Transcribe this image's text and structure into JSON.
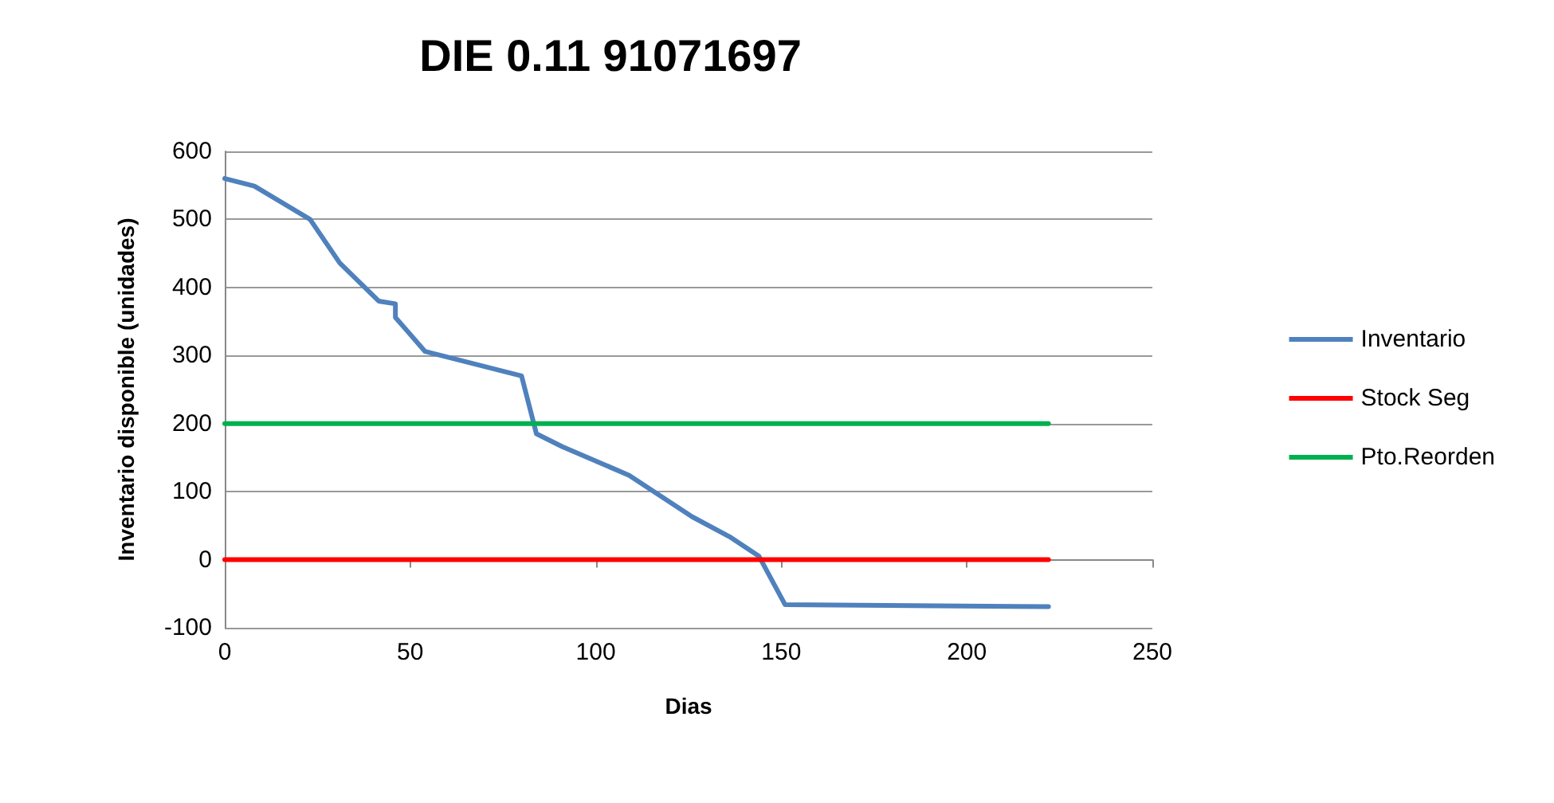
{
  "chart_data": {
    "type": "line",
    "title": "DIE 0.11 91071697",
    "xlabel": "Dias",
    "ylabel": "Inventario disponible (unidades)",
    "series": [
      {
        "name": "Inventario",
        "color": "#4f81bd",
        "x": [
          0,
          8,
          23,
          31,
          41.5,
          46,
          46,
          54,
          80,
          84,
          91,
          109,
          126,
          136,
          144,
          151,
          222
        ],
        "values": [
          560,
          549,
          500,
          436,
          380,
          376,
          356,
          306,
          270,
          185,
          166,
          124,
          63,
          34,
          5,
          -66,
          -69
        ]
      },
      {
        "name": "Stock Seg",
        "color": "#ff0000",
        "x": [
          0,
          222
        ],
        "values": [
          0,
          0
        ]
      },
      {
        "name": "Pto.Reorden",
        "color": "#00b050",
        "x": [
          0,
          222
        ],
        "values": [
          200,
          200
        ]
      }
    ],
    "xlim": [
      0,
      250
    ],
    "xticks": [
      0,
      50,
      100,
      150,
      200,
      250
    ],
    "ylim": [
      -100,
      600
    ],
    "yticks": [
      -100,
      0,
      100,
      200,
      300,
      400,
      500,
      600
    ],
    "grid": "y",
    "legend": "right",
    "marker": "none",
    "line_style": "solid"
  }
}
